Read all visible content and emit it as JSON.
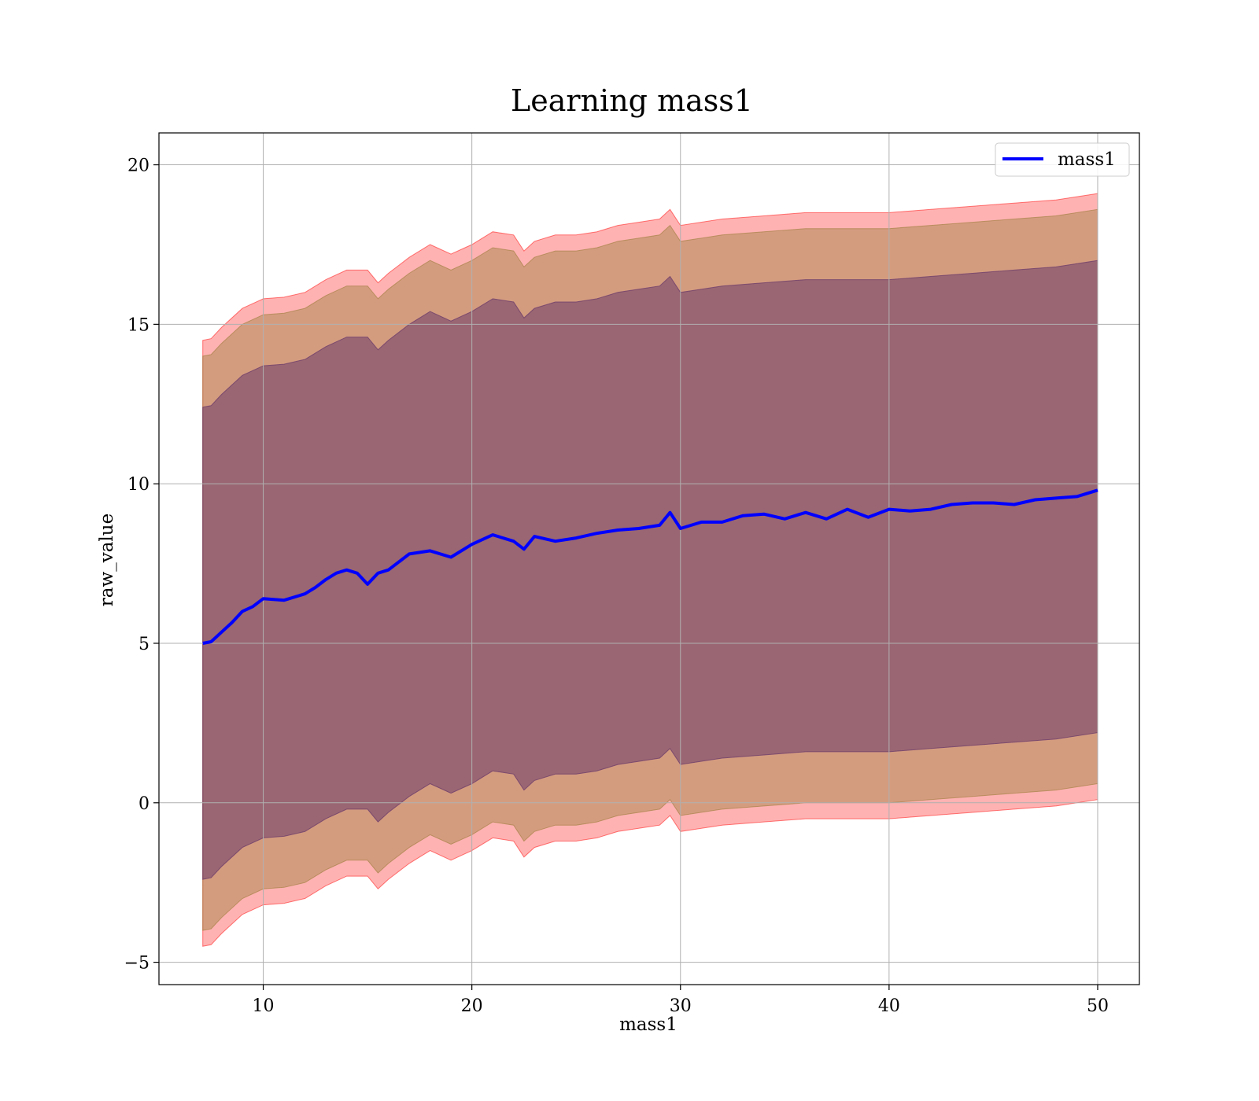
{
  "chart_data": {
    "type": "line",
    "title": "Learning mass1",
    "xlabel": "mass1",
    "ylabel": "raw_value",
    "xlim": [
      5,
      52
    ],
    "ylim": [
      -5.7,
      21
    ],
    "xticks": [
      10,
      20,
      30,
      40,
      50
    ],
    "xtick_labels": [
      "10",
      "20",
      "30",
      "40",
      "50"
    ],
    "yticks": [
      -5,
      0,
      5,
      10,
      15,
      20
    ],
    "ytick_labels": [
      "−5",
      "0",
      "5",
      "10",
      "15",
      "20"
    ],
    "grid": true,
    "legend_position": "top-right",
    "series": [
      {
        "name": "mass1",
        "color": "#0000ff",
        "x": [
          7.1,
          7.5,
          8,
          8.5,
          9,
          9.5,
          10,
          11,
          12,
          12.5,
          13,
          13.5,
          14,
          14.5,
          15,
          15.5,
          16,
          17,
          18,
          19,
          20,
          21,
          22,
          22.5,
          23,
          24,
          25,
          26,
          27,
          28,
          29,
          29.5,
          30,
          31,
          32,
          33,
          34,
          35,
          36,
          37,
          38,
          39,
          40,
          41,
          42,
          43,
          44,
          45,
          46,
          47,
          48,
          49,
          50
        ],
        "values": [
          5.0,
          5.05,
          5.35,
          5.65,
          6.0,
          6.15,
          6.4,
          6.35,
          6.55,
          6.75,
          7.0,
          7.2,
          7.3,
          7.2,
          6.85,
          7.2,
          7.3,
          7.8,
          7.9,
          7.7,
          8.1,
          8.4,
          8.2,
          7.95,
          8.35,
          8.2,
          8.3,
          8.45,
          8.55,
          8.6,
          8.7,
          9.1,
          8.6,
          8.8,
          8.8,
          9.0,
          9.05,
          8.9,
          9.1,
          8.9,
          9.2,
          8.95,
          9.2,
          9.15,
          9.2,
          9.35,
          9.4,
          9.4,
          9.35,
          9.5,
          9.55,
          9.6,
          9.8
        ]
      }
    ],
    "bands": [
      {
        "name": "outer",
        "color": "#ff0000",
        "opacity": 0.3,
        "x": [
          7.1,
          7.5,
          8,
          9,
          10,
          11,
          12,
          13,
          14,
          15,
          15.5,
          16,
          17,
          18,
          19,
          20,
          21,
          22,
          22.5,
          23,
          24,
          25,
          26,
          27,
          28,
          29,
          29.5,
          30,
          32,
          34,
          36,
          38,
          40,
          42,
          44,
          46,
          48,
          50
        ],
        "upper": [
          14.5,
          14.55,
          14.9,
          15.5,
          15.8,
          15.85,
          16.0,
          16.4,
          16.7,
          16.7,
          16.3,
          16.6,
          17.1,
          17.5,
          17.2,
          17.5,
          17.9,
          17.8,
          17.3,
          17.6,
          17.8,
          17.8,
          17.9,
          18.1,
          18.2,
          18.3,
          18.6,
          18.1,
          18.3,
          18.4,
          18.5,
          18.5,
          18.5,
          18.6,
          18.7,
          18.8,
          18.9,
          19.1
        ],
        "lower": [
          -4.5,
          -4.45,
          -4.1,
          -3.5,
          -3.2,
          -3.15,
          -3.0,
          -2.6,
          -2.3,
          -2.3,
          -2.7,
          -2.4,
          -1.9,
          -1.5,
          -1.8,
          -1.5,
          -1.1,
          -1.2,
          -1.7,
          -1.4,
          -1.2,
          -1.2,
          -1.1,
          -0.9,
          -0.8,
          -0.7,
          -0.4,
          -0.9,
          -0.7,
          -0.6,
          -0.5,
          -0.5,
          -0.5,
          -0.4,
          -0.3,
          -0.2,
          -0.1,
          0.1
        ]
      },
      {
        "name": "middle",
        "color": "#a08040",
        "opacity": 0.45,
        "x": [
          7.1,
          7.5,
          8,
          9,
          10,
          11,
          12,
          13,
          14,
          15,
          15.5,
          16,
          17,
          18,
          19,
          20,
          21,
          22,
          22.5,
          23,
          24,
          25,
          26,
          27,
          28,
          29,
          29.5,
          30,
          32,
          34,
          36,
          38,
          40,
          42,
          44,
          46,
          48,
          50
        ],
        "upper": [
          14.0,
          14.05,
          14.4,
          15.0,
          15.3,
          15.35,
          15.5,
          15.9,
          16.2,
          16.2,
          15.8,
          16.1,
          16.6,
          17.0,
          16.7,
          17.0,
          17.4,
          17.3,
          16.8,
          17.1,
          17.3,
          17.3,
          17.4,
          17.6,
          17.7,
          17.8,
          18.1,
          17.6,
          17.8,
          17.9,
          18.0,
          18.0,
          18.0,
          18.1,
          18.2,
          18.3,
          18.4,
          18.6
        ],
        "lower": [
          -4.0,
          -3.95,
          -3.6,
          -3.0,
          -2.7,
          -2.65,
          -2.5,
          -2.1,
          -1.8,
          -1.8,
          -2.2,
          -1.9,
          -1.4,
          -1.0,
          -1.3,
          -1.0,
          -0.6,
          -0.7,
          -1.2,
          -0.9,
          -0.7,
          -0.7,
          -0.6,
          -0.4,
          -0.3,
          -0.2,
          0.1,
          -0.4,
          -0.2,
          -0.1,
          0.0,
          0.0,
          0.0,
          0.1,
          0.2,
          0.3,
          0.4,
          0.6
        ]
      },
      {
        "name": "inner",
        "color": "#6a3a6a",
        "opacity": 0.55,
        "x": [
          7.1,
          7.5,
          8,
          9,
          10,
          11,
          12,
          13,
          14,
          15,
          15.5,
          16,
          17,
          18,
          19,
          20,
          21,
          22,
          22.5,
          23,
          24,
          25,
          26,
          27,
          28,
          29,
          29.5,
          30,
          32,
          34,
          36,
          38,
          40,
          42,
          44,
          46,
          48,
          50
        ],
        "upper": [
          12.4,
          12.45,
          12.8,
          13.4,
          13.7,
          13.75,
          13.9,
          14.3,
          14.6,
          14.6,
          14.2,
          14.5,
          15.0,
          15.4,
          15.1,
          15.4,
          15.8,
          15.7,
          15.2,
          15.5,
          15.7,
          15.7,
          15.8,
          16.0,
          16.1,
          16.2,
          16.5,
          16.0,
          16.2,
          16.3,
          16.4,
          16.4,
          16.4,
          16.5,
          16.6,
          16.7,
          16.8,
          17.0
        ],
        "lower": [
          -2.4,
          -2.35,
          -2.0,
          -1.4,
          -1.1,
          -1.05,
          -0.9,
          -0.5,
          -0.2,
          -0.2,
          -0.6,
          -0.3,
          0.2,
          0.6,
          0.3,
          0.6,
          1.0,
          0.9,
          0.4,
          0.7,
          0.9,
          0.9,
          1.0,
          1.2,
          1.3,
          1.4,
          1.7,
          1.2,
          1.4,
          1.5,
          1.6,
          1.6,
          1.6,
          1.7,
          1.8,
          1.9,
          2.0,
          2.2
        ]
      }
    ]
  }
}
